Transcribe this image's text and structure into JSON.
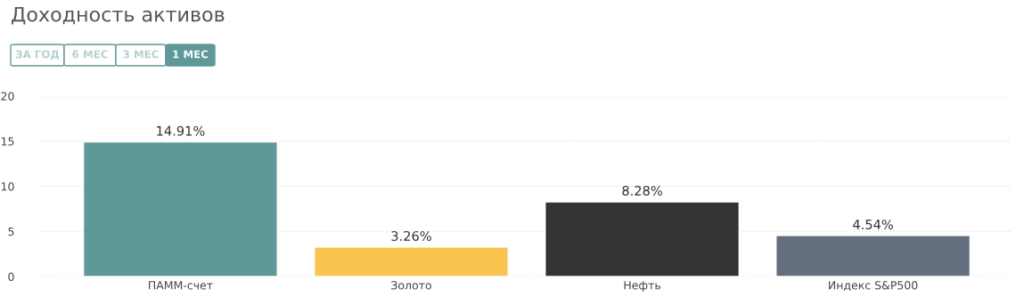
{
  "chart_data": {
    "type": "bar",
    "title": "Доходность активов",
    "annotations": [
      "ЗА ГОД",
      "6 МЕС",
      "3 МЕС",
      "1 МЕС"
    ],
    "categories": [
      "ПАММ-счет",
      "Золото",
      "Нефть",
      "Индекс S&P500"
    ],
    "values": [
      14.91,
      3.26,
      8.28,
      4.54
    ],
    "colors": [
      "#5e9898",
      "#f8c44f",
      "#333333",
      "#636e7e"
    ],
    "value_labels": [
      "14.91%",
      "3.26%",
      "8.28%",
      "4.54%"
    ],
    "ylim": [
      0,
      20
    ],
    "yticks": [
      0,
      5,
      10,
      15,
      20
    ],
    "grid": "y"
  }
}
